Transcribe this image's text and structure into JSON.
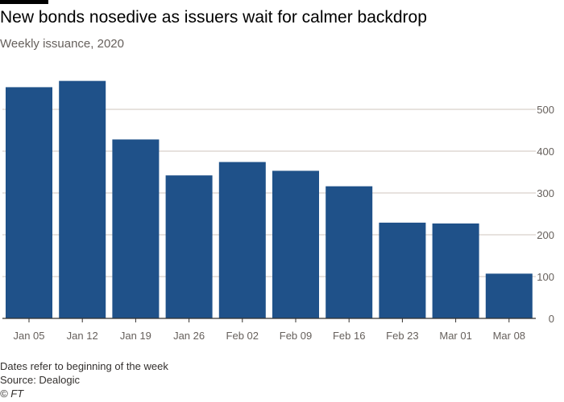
{
  "header": {
    "title": "New bonds nosedive as issuers wait for calmer backdrop",
    "subtitle": "Weekly issuance, 2020"
  },
  "footer": {
    "note": "Dates refer to beginning of the week",
    "source": "Source: Dealogic",
    "copyright": "© FT"
  },
  "colors": {
    "bar": "#1f5189",
    "grid": "#cfc6bd",
    "axis": "#33302e",
    "text": "#66605c"
  },
  "chart_data": {
    "type": "bar",
    "title": "New bonds nosedive as issuers wait for calmer backdrop",
    "subtitle": "Weekly issuance, 2020",
    "xlabel": "",
    "ylabel": "",
    "categories": [
      "Jan 05",
      "Jan 12",
      "Jan 19",
      "Jan 26",
      "Feb 02",
      "Feb 09",
      "Feb 16",
      "Feb 23",
      "Mar 01",
      "Mar 08"
    ],
    "values": [
      553,
      568,
      428,
      342,
      374,
      353,
      316,
      229,
      227,
      107
    ],
    "ylim": [
      0,
      550
    ],
    "yticks": [
      0,
      100,
      200,
      300,
      400,
      500
    ],
    "grid": true,
    "y_axis_side": "right"
  }
}
